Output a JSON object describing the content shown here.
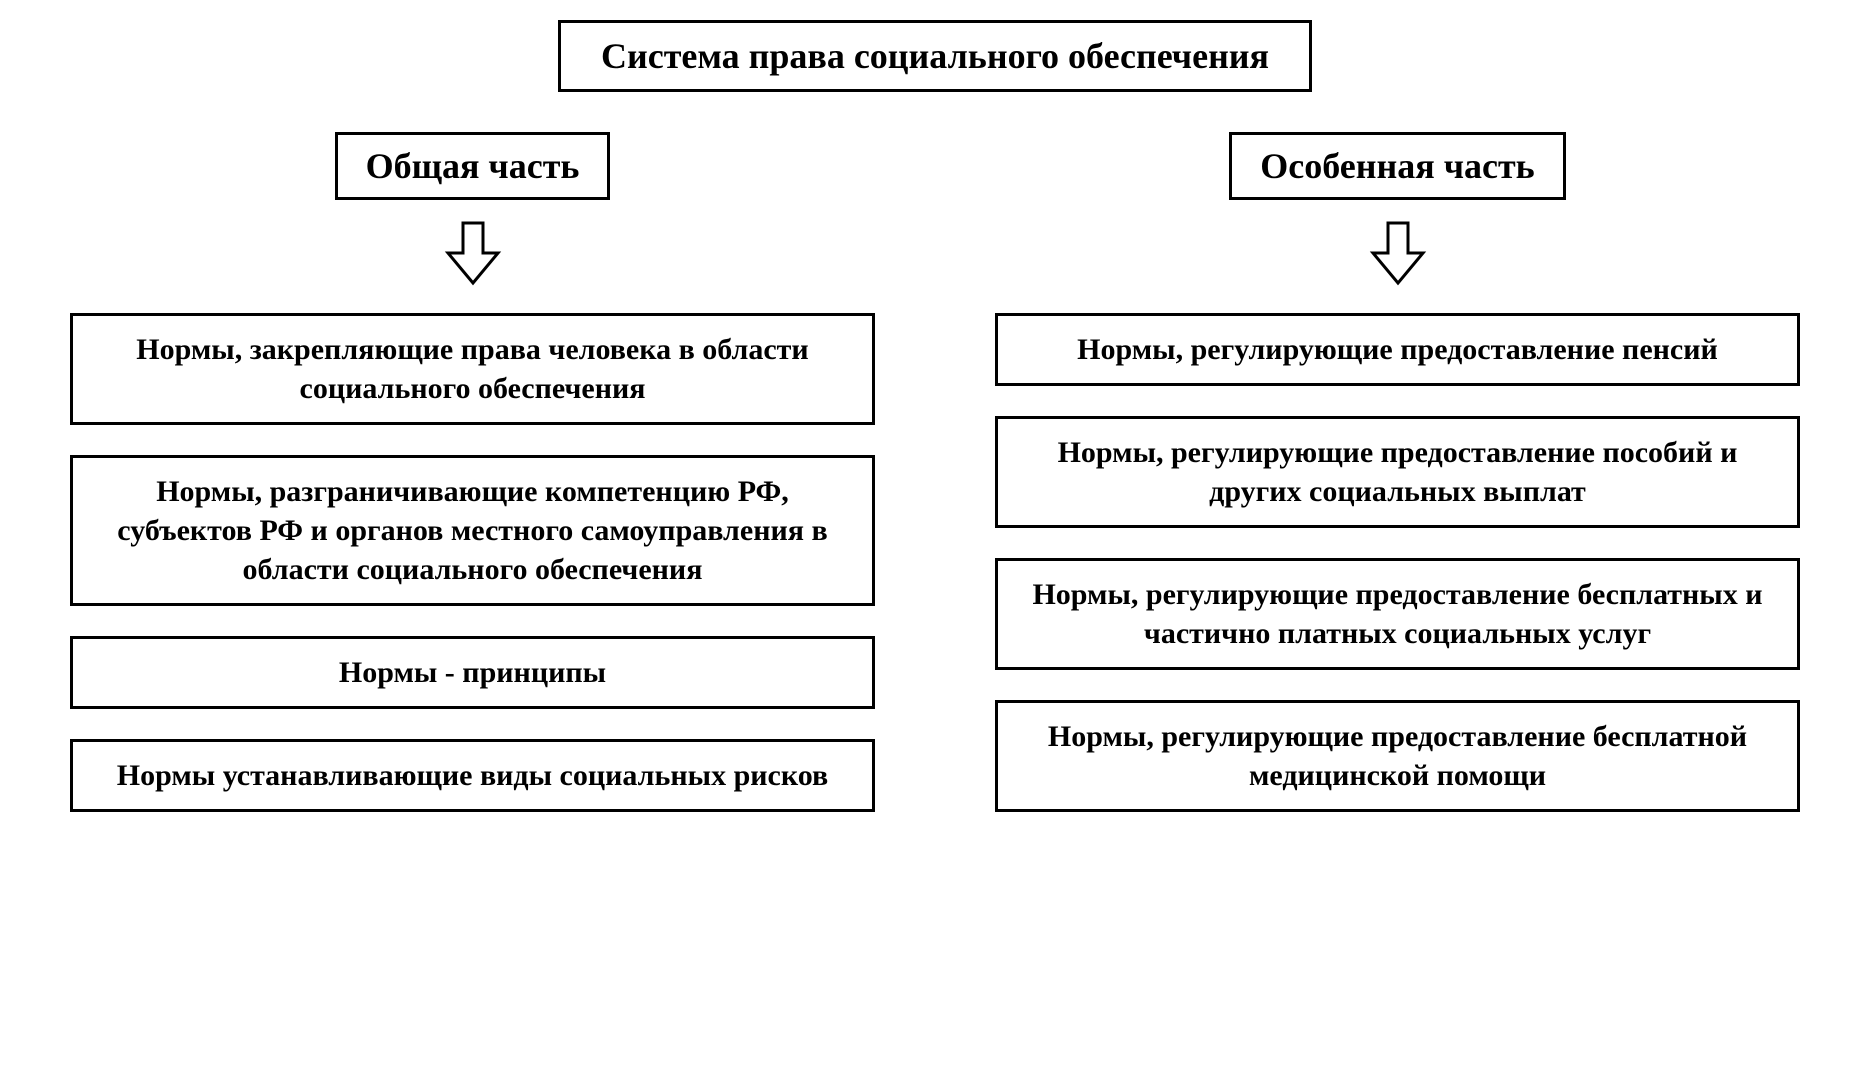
{
  "type": "tree",
  "background_color": "#ffffff",
  "border_color": "#000000",
  "border_width": 3,
  "font_family": "Times New Roman",
  "font_weight": "bold",
  "title": {
    "text": "Система права социального обеспечения",
    "fontsize": 36
  },
  "left": {
    "header": {
      "text": "Общая часть",
      "fontsize": 36
    },
    "items": [
      "Нормы, закрепляющие права человека в области социального обеспечения",
      "Нормы, разграничивающие компетенцию РФ, субъектов РФ и органов местного самоуправления в области социального обеспечения",
      "Нормы - принципы",
      "Нормы устанавливающие виды социальных рисков"
    ],
    "item_fontsize": 30
  },
  "right": {
    "header": {
      "text": "Особенная часть",
      "fontsize": 36
    },
    "items": [
      "Нормы, регулирующие предоставление пенсий",
      "Нормы, регулирующие предоставление пособий и других социальных выплат",
      "Нормы, регулирующие предоставление бесплатных и частично платных социальных услуг",
      "Нормы, регулирующие предоставление бесплатной медицинской помощи"
    ],
    "item_fontsize": 30
  },
  "arrow": {
    "width": 60,
    "height": 70,
    "stroke": "#000000",
    "stroke_width": 3,
    "fill": "#ffffff"
  }
}
